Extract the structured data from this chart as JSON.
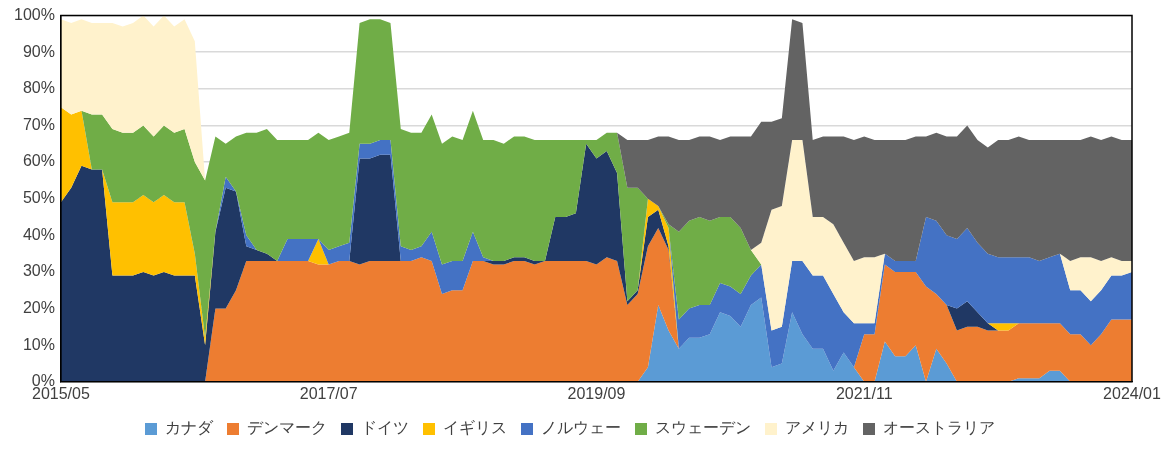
{
  "chart_data": {
    "type": "area",
    "stacked": true,
    "legend": "bottom",
    "grid": "y",
    "x": [
      "2015-05",
      "2015-06",
      "2015-07",
      "2015-08",
      "2015-09",
      "2015-10",
      "2015-11",
      "2015-12",
      "2016-01",
      "2016-02",
      "2016-03",
      "2016-04",
      "2016-05",
      "2016-06",
      "2016-07",
      "2016-08",
      "2016-09",
      "2016-10",
      "2016-11",
      "2016-12",
      "2017-01",
      "2017-02",
      "2017-03",
      "2017-04",
      "2017-05",
      "2017-06",
      "2017-07",
      "2017-08",
      "2017-09",
      "2017-10",
      "2017-11",
      "2017-12",
      "2018-01",
      "2018-02",
      "2018-03",
      "2018-04",
      "2018-05",
      "2018-06",
      "2018-07",
      "2018-08",
      "2018-09",
      "2018-10",
      "2018-11",
      "2018-12",
      "2019-01",
      "2019-02",
      "2019-03",
      "2019-04",
      "2019-05",
      "2019-06",
      "2019-07",
      "2019-08",
      "2019-09",
      "2019-10",
      "2019-11",
      "2019-12",
      "2020-01",
      "2020-02",
      "2020-03",
      "2020-04",
      "2020-05",
      "2020-06",
      "2020-07",
      "2020-08",
      "2020-09",
      "2020-10",
      "2020-11",
      "2020-12",
      "2021-01",
      "2021-02",
      "2021-03",
      "2021-04",
      "2021-05",
      "2021-06",
      "2021-07",
      "2021-08",
      "2021-09",
      "2021-10",
      "2021-11",
      "2021-12",
      "2022-01",
      "2022-02",
      "2022-03",
      "2022-04",
      "2022-05",
      "2022-06",
      "2022-07",
      "2022-08",
      "2022-09",
      "2022-10",
      "2022-11",
      "2022-12",
      "2023-01",
      "2023-02",
      "2023-03",
      "2023-04",
      "2023-05",
      "2023-06",
      "2023-07",
      "2023-08",
      "2023-09",
      "2023-10",
      "2023-11",
      "2023-12",
      "2024-01"
    ],
    "xlim": [
      "2015-05",
      "2024-01"
    ],
    "xticks": [
      {
        "value": "2015-05",
        "label": "2015/05"
      },
      {
        "value": "2017-07",
        "label": "2017/07"
      },
      {
        "value": "2019-09",
        "label": "2019/09"
      },
      {
        "value": "2021-11",
        "label": "2021/11"
      },
      {
        "value": "2024-01",
        "label": "2024/01"
      }
    ],
    "ylim": [
      0,
      100
    ],
    "yticks": [
      {
        "value": 0,
        "label": "0%"
      },
      {
        "value": 10,
        "label": "10%"
      },
      {
        "value": 20,
        "label": "20%"
      },
      {
        "value": 30,
        "label": "30%"
      },
      {
        "value": 40,
        "label": "40%"
      },
      {
        "value": 50,
        "label": "50%"
      },
      {
        "value": 60,
        "label": "60%"
      },
      {
        "value": 70,
        "label": "70%"
      },
      {
        "value": 80,
        "label": "80%"
      },
      {
        "value": 90,
        "label": "90%"
      },
      {
        "value": 100,
        "label": "100%"
      }
    ],
    "series": [
      {
        "name": "カナダ",
        "color": "#5b9bd5",
        "values": [
          null,
          null,
          null,
          null,
          null,
          null,
          null,
          null,
          null,
          null,
          null,
          null,
          null,
          null,
          null,
          null,
          null,
          null,
          null,
          null,
          null,
          null,
          null,
          null,
          null,
          null,
          null,
          null,
          null,
          null,
          null,
          null,
          null,
          null,
          null,
          null,
          null,
          null,
          null,
          null,
          null,
          null,
          null,
          null,
          null,
          null,
          null,
          null,
          null,
          null,
          null,
          null,
          null,
          null,
          null,
          null,
          0,
          4,
          21,
          14,
          9,
          12,
          12,
          13,
          19,
          18,
          15,
          21,
          23,
          4,
          5,
          19,
          13,
          9,
          9,
          3,
          8,
          4,
          0,
          0,
          11,
          7,
          7,
          10,
          0,
          9,
          5,
          0,
          null,
          null,
          null,
          null,
          0,
          1,
          1,
          1,
          3,
          3,
          0,
          null,
          null,
          null,
          null,
          null,
          null
        ]
      },
      {
        "name": "デンマーク",
        "color": "#ed7d31",
        "values": [
          null,
          null,
          null,
          null,
          null,
          null,
          null,
          null,
          null,
          null,
          null,
          null,
          null,
          null,
          0,
          20,
          20,
          25,
          33,
          33,
          33,
          33,
          33,
          33,
          33,
          32,
          32,
          33,
          33,
          32,
          33,
          33,
          33,
          33,
          33,
          34,
          33,
          24,
          25,
          25,
          33,
          33,
          32,
          32,
          33,
          33,
          32,
          33,
          33,
          33,
          33,
          33,
          32,
          34,
          33,
          21,
          24,
          33,
          21,
          22,
          0,
          null,
          null,
          null,
          null,
          null,
          null,
          null,
          null,
          null,
          null,
          null,
          null,
          null,
          null,
          null,
          null,
          0,
          13,
          13,
          21,
          23,
          23,
          20,
          26,
          15,
          16,
          14,
          15,
          15,
          14,
          14,
          14,
          15,
          15,
          15,
          13,
          13,
          13,
          13,
          10,
          13,
          17,
          17,
          17
        ]
      },
      {
        "name": "ドイツ",
        "color": "#203864",
        "values": [
          49,
          53,
          59,
          58,
          58,
          29,
          29,
          29,
          30,
          29,
          30,
          29,
          29,
          29,
          10,
          21,
          33,
          27,
          4,
          3,
          2,
          0,
          null,
          null,
          null,
          null,
          null,
          null,
          0,
          29,
          28,
          29,
          29,
          0,
          null,
          null,
          null,
          null,
          null,
          null,
          null,
          0,
          1,
          1,
          1,
          1,
          1,
          0,
          12,
          12,
          13,
          32,
          29,
          29,
          24,
          1,
          1,
          8,
          5,
          1,
          0,
          null,
          null,
          null,
          null,
          null,
          null,
          null,
          null,
          null,
          null,
          null,
          null,
          null,
          null,
          null,
          null,
          null,
          null,
          null,
          null,
          null,
          null,
          null,
          null,
          null,
          0,
          6,
          7,
          4,
          2,
          0,
          null,
          null,
          null,
          null,
          null,
          null,
          null,
          null,
          null,
          null,
          null,
          null,
          null
        ]
      },
      {
        "name": "イギリス",
        "color": "#ffc000",
        "values": [
          26,
          20,
          15,
          0,
          0,
          20,
          20,
          20,
          21,
          20,
          21,
          20,
          20,
          6,
          2,
          0,
          null,
          null,
          null,
          null,
          null,
          null,
          null,
          null,
          0,
          7,
          0,
          null,
          null,
          null,
          null,
          null,
          null,
          null,
          null,
          null,
          null,
          null,
          null,
          null,
          null,
          null,
          null,
          null,
          null,
          null,
          null,
          null,
          null,
          null,
          null,
          null,
          null,
          null,
          null,
          null,
          0,
          5,
          1,
          5,
          0,
          null,
          null,
          null,
          null,
          null,
          null,
          null,
          null,
          null,
          null,
          null,
          null,
          null,
          null,
          null,
          null,
          null,
          null,
          null,
          null,
          null,
          null,
          null,
          null,
          null,
          null,
          null,
          null,
          null,
          0,
          2,
          2,
          0,
          null,
          null,
          null,
          null,
          null,
          null,
          null,
          null,
          null,
          null,
          null
        ]
      },
      {
        "name": "ノルウェー",
        "color": "#4472c4",
        "values": [
          null,
          null,
          null,
          null,
          null,
          null,
          null,
          null,
          null,
          null,
          null,
          null,
          null,
          null,
          null,
          0,
          3,
          0,
          3,
          0,
          null,
          0,
          6,
          6,
          6,
          0,
          4,
          4,
          5,
          4,
          4,
          4,
          4,
          4,
          3,
          3,
          8,
          8,
          8,
          8,
          8,
          1,
          0,
          null,
          null,
          null,
          null,
          null,
          null,
          null,
          null,
          null,
          null,
          null,
          null,
          null,
          null,
          null,
          null,
          0,
          8,
          8,
          9,
          8,
          8,
          8,
          9,
          8,
          9,
          10,
          10,
          14,
          20,
          20,
          20,
          21,
          11,
          12,
          3,
          3,
          3,
          3,
          3,
          3,
          19,
          20,
          19,
          19,
          20,
          19,
          19,
          18,
          18,
          18,
          18,
          17,
          18,
          19,
          12,
          12,
          12,
          12,
          12,
          12,
          13
        ]
      },
      {
        "name": "スウェーデン",
        "color": "#70ad47",
        "values": [
          null,
          null,
          0,
          15,
          15,
          20,
          19,
          19,
          19,
          18,
          19,
          19,
          20,
          25,
          43,
          26,
          9,
          15,
          28,
          32,
          34,
          33,
          27,
          27,
          27,
          29,
          30,
          30,
          30,
          33,
          34,
          33,
          32,
          32,
          32,
          31,
          32,
          33,
          34,
          33,
          33,
          32,
          33,
          32,
          33,
          33,
          33,
          33,
          21,
          21,
          20,
          1,
          5,
          5,
          11,
          31,
          28,
          0,
          0,
          1,
          24,
          24,
          24,
          23,
          18,
          19,
          18,
          7,
          0,
          null,
          null,
          null,
          null,
          null,
          null,
          null,
          null,
          null,
          null,
          null,
          null,
          null,
          null,
          null,
          null,
          null,
          null,
          null,
          null,
          null,
          null,
          null,
          null,
          null,
          null,
          null,
          null,
          null,
          null,
          null,
          null,
          null,
          null,
          null,
          null
        ]
      },
      {
        "name": "アメリカ",
        "color": "#fff2cc",
        "values": [
          24,
          25,
          25,
          25,
          25,
          29,
          29,
          30,
          30,
          30,
          30,
          29,
          30,
          33,
          0,
          null,
          null,
          null,
          null,
          null,
          null,
          null,
          null,
          null,
          null,
          null,
          null,
          null,
          null,
          null,
          null,
          null,
          null,
          null,
          null,
          null,
          null,
          null,
          null,
          null,
          null,
          null,
          null,
          null,
          null,
          null,
          null,
          null,
          null,
          null,
          null,
          null,
          null,
          null,
          null,
          null,
          null,
          null,
          null,
          null,
          null,
          null,
          null,
          null,
          null,
          null,
          null,
          0,
          6,
          33,
          33,
          33,
          33,
          16,
          16,
          19,
          19,
          17,
          18,
          18,
          0,
          null,
          null,
          null,
          null,
          null,
          null,
          null,
          null,
          null,
          null,
          null,
          null,
          null,
          null,
          null,
          null,
          0,
          8,
          9,
          12,
          8,
          5,
          4,
          3
        ]
      },
      {
        "name": "オーストラリア",
        "color": "#636363",
        "values": [
          null,
          null,
          null,
          null,
          null,
          null,
          null,
          null,
          null,
          null,
          null,
          null,
          null,
          null,
          null,
          null,
          null,
          null,
          null,
          null,
          null,
          null,
          null,
          null,
          null,
          null,
          null,
          null,
          null,
          null,
          null,
          null,
          null,
          null,
          null,
          null,
          null,
          null,
          null,
          null,
          null,
          null,
          null,
          null,
          null,
          null,
          null,
          null,
          null,
          null,
          null,
          null,
          null,
          null,
          0,
          13,
          13,
          16,
          19,
          24,
          25,
          22,
          22,
          23,
          21,
          22,
          25,
          31,
          33,
          24,
          24,
          33,
          32,
          21,
          22,
          24,
          29,
          33,
          33,
          32,
          31,
          33,
          33,
          34,
          22,
          24,
          27,
          28,
          28,
          28,
          29,
          32,
          32,
          33,
          32,
          33,
          32,
          31,
          33,
          32,
          33,
          33,
          33,
          33,
          33
        ]
      }
    ]
  }
}
